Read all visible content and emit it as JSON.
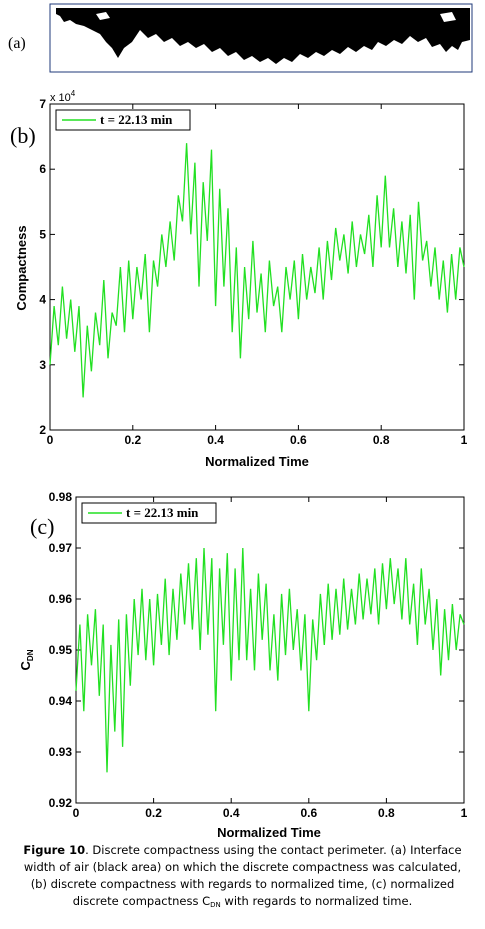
{
  "figure": {
    "panel_a_label": "(a)",
    "panel_b_label": "(b)",
    "panel_c_label": "(c)"
  },
  "chart_data": [
    {
      "type": "line",
      "panel": "b",
      "title": "",
      "xlabel": "Normalized Time",
      "ylabel": "Compactness",
      "y_multiplier_label": "x 10",
      "y_multiplier_exp": "4",
      "xlim": [
        0,
        1
      ],
      "ylim": [
        2,
        7
      ],
      "xticks": [
        0,
        0.2,
        0.4,
        0.6,
        0.8,
        1
      ],
      "xtick_labels": [
        "0",
        "0.2",
        "0.4",
        "0.6",
        "0.8",
        "1"
      ],
      "yticks": [
        2,
        3,
        4,
        5,
        6,
        7
      ],
      "ytick_labels": [
        "2",
        "3",
        "4",
        "5",
        "6",
        "7"
      ],
      "legend_position": "top-left",
      "grid": false,
      "color": "#22e022",
      "series": [
        {
          "name": "t = 22.13 min",
          "x": [
            0,
            0.01,
            0.02,
            0.03,
            0.04,
            0.05,
            0.06,
            0.07,
            0.08,
            0.09,
            0.1,
            0.11,
            0.12,
            0.13,
            0.14,
            0.15,
            0.16,
            0.17,
            0.18,
            0.19,
            0.2,
            0.21,
            0.22,
            0.23,
            0.24,
            0.25,
            0.26,
            0.27,
            0.28,
            0.29,
            0.3,
            0.31,
            0.32,
            0.33,
            0.34,
            0.35,
            0.36,
            0.37,
            0.38,
            0.39,
            0.4,
            0.41,
            0.42,
            0.43,
            0.44,
            0.45,
            0.46,
            0.47,
            0.48,
            0.49,
            0.5,
            0.51,
            0.52,
            0.53,
            0.54,
            0.55,
            0.56,
            0.57,
            0.58,
            0.59,
            0.6,
            0.61,
            0.62,
            0.63,
            0.64,
            0.65,
            0.66,
            0.67,
            0.68,
            0.69,
            0.7,
            0.71,
            0.72,
            0.73,
            0.74,
            0.75,
            0.76,
            0.77,
            0.78,
            0.79,
            0.8,
            0.81,
            0.82,
            0.83,
            0.84,
            0.85,
            0.86,
            0.87,
            0.88,
            0.89,
            0.9,
            0.91,
            0.92,
            0.93,
            0.94,
            0.95,
            0.96,
            0.97,
            0.98,
            0.99,
            1
          ],
          "values": [
            3.0,
            3.9,
            3.3,
            4.2,
            3.4,
            4.0,
            3.2,
            3.9,
            2.5,
            3.6,
            2.9,
            3.8,
            3.3,
            4.3,
            3.1,
            3.8,
            3.6,
            4.5,
            3.5,
            4.6,
            3.7,
            4.5,
            4.0,
            4.7,
            3.5,
            4.6,
            4.2,
            5.0,
            4.5,
            5.2,
            4.6,
            5.6,
            5.2,
            6.4,
            5.0,
            6.1,
            4.2,
            5.8,
            4.9,
            6.3,
            3.9,
            5.7,
            4.2,
            5.4,
            3.5,
            4.8,
            3.1,
            4.5,
            3.7,
            4.9,
            3.8,
            4.4,
            3.5,
            4.6,
            3.9,
            4.2,
            3.5,
            4.5,
            4.0,
            4.6,
            3.7,
            4.7,
            4.0,
            4.5,
            4.1,
            4.8,
            4.0,
            4.9,
            4.3,
            5.1,
            4.6,
            5.0,
            4.4,
            5.2,
            4.5,
            5.0,
            4.7,
            5.3,
            4.5,
            5.6,
            4.8,
            5.9,
            4.8,
            5.4,
            4.5,
            5.2,
            4.4,
            5.3,
            4.0,
            5.5,
            4.6,
            4.9,
            4.2,
            4.8,
            4.0,
            4.6,
            3.8,
            4.7,
            4.0,
            4.8,
            4.5
          ]
        }
      ]
    },
    {
      "type": "line",
      "panel": "c",
      "title": "",
      "xlabel": "Normalized Time",
      "ylabel": "C",
      "ylabel_sub": "DN",
      "xlim": [
        0,
        1
      ],
      "ylim": [
        0.92,
        0.98
      ],
      "xticks": [
        0,
        0.2,
        0.4,
        0.6,
        0.8,
        1
      ],
      "xtick_labels": [
        "0",
        "0.2",
        "0.4",
        "0.6",
        "0.8",
        "1"
      ],
      "yticks": [
        0.92,
        0.93,
        0.94,
        0.95,
        0.96,
        0.97,
        0.98
      ],
      "ytick_labels": [
        "0.92",
        "0.93",
        "0.94",
        "0.95",
        "0.96",
        "0.97",
        "0.98"
      ],
      "legend_position": "top-left",
      "grid": false,
      "color": "#22e022",
      "series": [
        {
          "name": "t = 22.13 min",
          "x": [
            0,
            0.01,
            0.02,
            0.03,
            0.04,
            0.05,
            0.06,
            0.07,
            0.08,
            0.09,
            0.1,
            0.11,
            0.12,
            0.13,
            0.14,
            0.15,
            0.16,
            0.17,
            0.18,
            0.19,
            0.2,
            0.21,
            0.22,
            0.23,
            0.24,
            0.25,
            0.26,
            0.27,
            0.28,
            0.29,
            0.3,
            0.31,
            0.32,
            0.33,
            0.34,
            0.35,
            0.36,
            0.37,
            0.38,
            0.39,
            0.4,
            0.41,
            0.42,
            0.43,
            0.44,
            0.45,
            0.46,
            0.47,
            0.48,
            0.49,
            0.5,
            0.51,
            0.52,
            0.53,
            0.54,
            0.55,
            0.56,
            0.57,
            0.58,
            0.59,
            0.6,
            0.61,
            0.62,
            0.63,
            0.64,
            0.65,
            0.66,
            0.67,
            0.68,
            0.69,
            0.7,
            0.71,
            0.72,
            0.73,
            0.74,
            0.75,
            0.76,
            0.77,
            0.78,
            0.79,
            0.8,
            0.81,
            0.82,
            0.83,
            0.84,
            0.85,
            0.86,
            0.87,
            0.88,
            0.89,
            0.9,
            0.91,
            0.92,
            0.93,
            0.94,
            0.95,
            0.96,
            0.97,
            0.98,
            0.99,
            1
          ],
          "values": [
            0.942,
            0.955,
            0.938,
            0.957,
            0.947,
            0.958,
            0.941,
            0.955,
            0.926,
            0.951,
            0.934,
            0.956,
            0.931,
            0.957,
            0.943,
            0.96,
            0.949,
            0.962,
            0.948,
            0.96,
            0.947,
            0.961,
            0.951,
            0.964,
            0.949,
            0.962,
            0.952,
            0.965,
            0.955,
            0.967,
            0.954,
            0.968,
            0.95,
            0.97,
            0.953,
            0.968,
            0.938,
            0.966,
            0.951,
            0.969,
            0.944,
            0.966,
            0.948,
            0.97,
            0.948,
            0.962,
            0.946,
            0.965,
            0.952,
            0.963,
            0.946,
            0.957,
            0.944,
            0.961,
            0.949,
            0.962,
            0.95,
            0.958,
            0.946,
            0.957,
            0.938,
            0.956,
            0.948,
            0.961,
            0.951,
            0.963,
            0.952,
            0.962,
            0.953,
            0.964,
            0.954,
            0.962,
            0.955,
            0.965,
            0.956,
            0.964,
            0.957,
            0.966,
            0.955,
            0.967,
            0.958,
            0.968,
            0.959,
            0.966,
            0.956,
            0.968,
            0.955,
            0.963,
            0.951,
            0.966,
            0.955,
            0.962,
            0.95,
            0.96,
            0.945,
            0.958,
            0.948,
            0.959,
            0.95,
            0.957,
            0.955
          ]
        }
      ]
    }
  ],
  "caption": {
    "figure_label": "Figure 10",
    "line1": ". Discrete compactness using the contact perimeter. (a) Interface",
    "line2": "width of air (black area) on which the discrete compactness was calculated,",
    "line3": "(b) discrete compactness with regards to normalized time, (c) normalized",
    "line4_a": "discrete compactness C",
    "line4_sub": "DN",
    "line4_b": " with regards to normalized time."
  }
}
